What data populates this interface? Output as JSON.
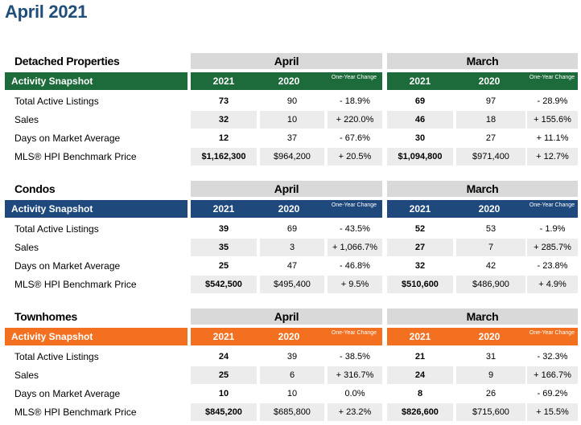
{
  "page": {
    "title": "April 2021"
  },
  "headers": {
    "period_a": "April",
    "period_b": "March",
    "activity_snapshot": "Activity Snapshot",
    "year_current": "2021",
    "year_prior": "2020",
    "change": "One-Year Change"
  },
  "sections": [
    {
      "title": "Detached Properties",
      "color": "#1d6b3b",
      "rows": [
        {
          "label": "Total Active Listings",
          "a2021": "73",
          "a2020": "90",
          "achg": "- 18.9%",
          "m2021": "69",
          "m2020": "97",
          "mchg": "- 28.9%"
        },
        {
          "label": "Sales",
          "a2021": "32",
          "a2020": "10",
          "achg": "+ 220.0%",
          "m2021": "46",
          "m2020": "18",
          "mchg": "+ 155.6%"
        },
        {
          "label": "Days on Market Average",
          "a2021": "12",
          "a2020": "37",
          "achg": "- 67.6%",
          "m2021": "30",
          "m2020": "27",
          "mchg": "+ 11.1%"
        },
        {
          "label": "MLS® HPI Benchmark Price",
          "a2021": "$1,162,300",
          "a2020": "$964,200",
          "achg": "+ 20.5%",
          "m2021": "$1,094,800",
          "m2020": "$971,400",
          "mchg": "+ 12.7%"
        }
      ]
    },
    {
      "title": "Condos",
      "color": "#1f497d",
      "rows": [
        {
          "label": "Total Active Listings",
          "a2021": "39",
          "a2020": "69",
          "achg": "- 43.5%",
          "m2021": "52",
          "m2020": "53",
          "mchg": "- 1.9%"
        },
        {
          "label": "Sales",
          "a2021": "35",
          "a2020": "3",
          "achg": "+ 1,066.7%",
          "m2021": "27",
          "m2020": "7",
          "mchg": "+ 285.7%"
        },
        {
          "label": "Days on Market Average",
          "a2021": "25",
          "a2020": "47",
          "achg": "- 46.8%",
          "m2021": "32",
          "m2020": "42",
          "mchg": "- 23.8%"
        },
        {
          "label": "MLS® HPI Benchmark Price",
          "a2021": "$542,500",
          "a2020": "$495,400",
          "achg": "+ 9.5%",
          "m2021": "$510,600",
          "m2020": "$486,900",
          "mchg": "+ 4.9%"
        }
      ]
    },
    {
      "title": "Townhomes",
      "color": "#f37021",
      "rows": [
        {
          "label": "Total Active Listings",
          "a2021": "24",
          "a2020": "39",
          "achg": "- 38.5%",
          "m2021": "21",
          "m2020": "31",
          "mchg": "- 32.3%"
        },
        {
          "label": "Sales",
          "a2021": "25",
          "a2020": "6",
          "achg": "+ 316.7%",
          "m2021": "24",
          "m2020": "9",
          "mchg": "+ 166.7%"
        },
        {
          "label": "Days on Market Average",
          "a2021": "10",
          "a2020": "10",
          "achg": "0.0%",
          "m2021": "8",
          "m2020": "26",
          "mchg": "- 69.2%"
        },
        {
          "label": "MLS® HPI Benchmark Price",
          "a2021": "$845,200",
          "a2020": "$685,800",
          "achg": "+ 23.2%",
          "m2021": "$826,600",
          "m2020": "$715,600",
          "mchg": "+ 15.5%"
        }
      ]
    }
  ]
}
